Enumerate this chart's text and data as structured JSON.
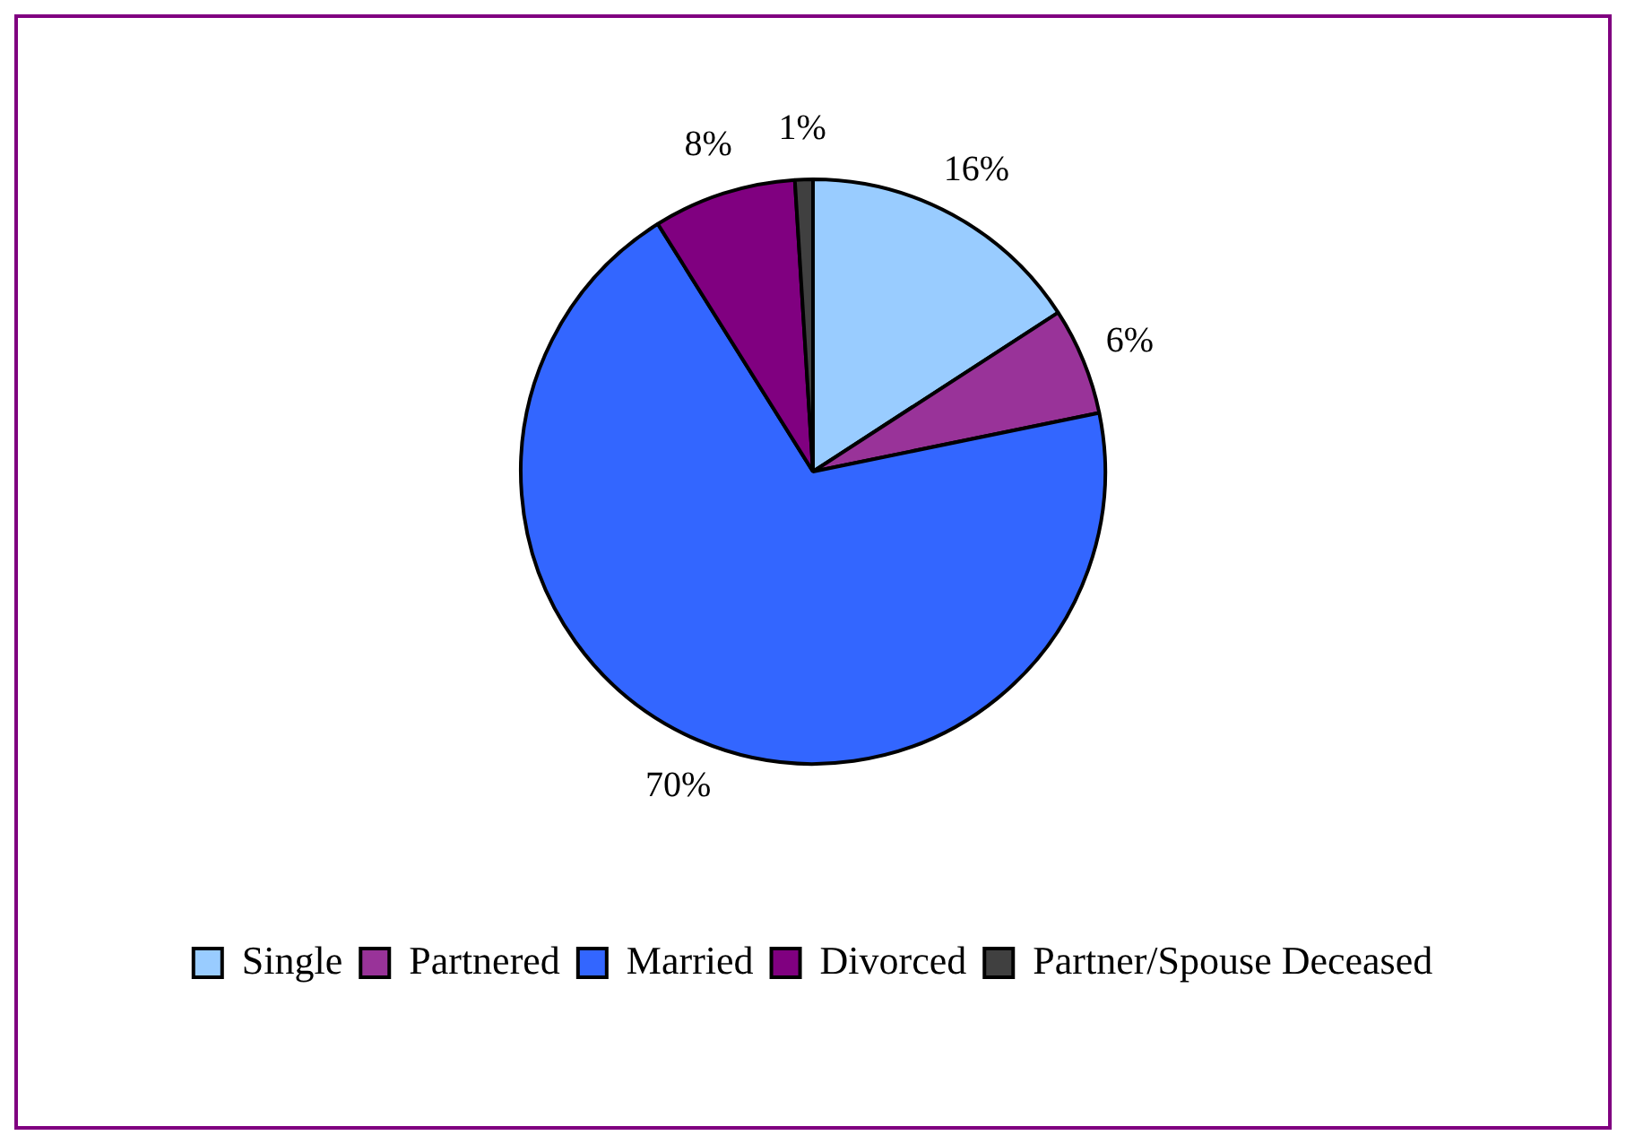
{
  "chart_data": {
    "type": "pie",
    "categories": [
      "Single",
      "Partnered",
      "Married",
      "Divorced",
      "Partner/Spouse Deceased"
    ],
    "values": [
      16,
      6,
      70,
      8,
      1
    ],
    "colors": [
      "#99ccff",
      "#993399",
      "#3366ff",
      "#800080",
      "#404040"
    ],
    "value_labels": [
      "16%",
      "6%",
      "70%",
      "8%",
      "1%"
    ],
    "legend": "bottom"
  }
}
